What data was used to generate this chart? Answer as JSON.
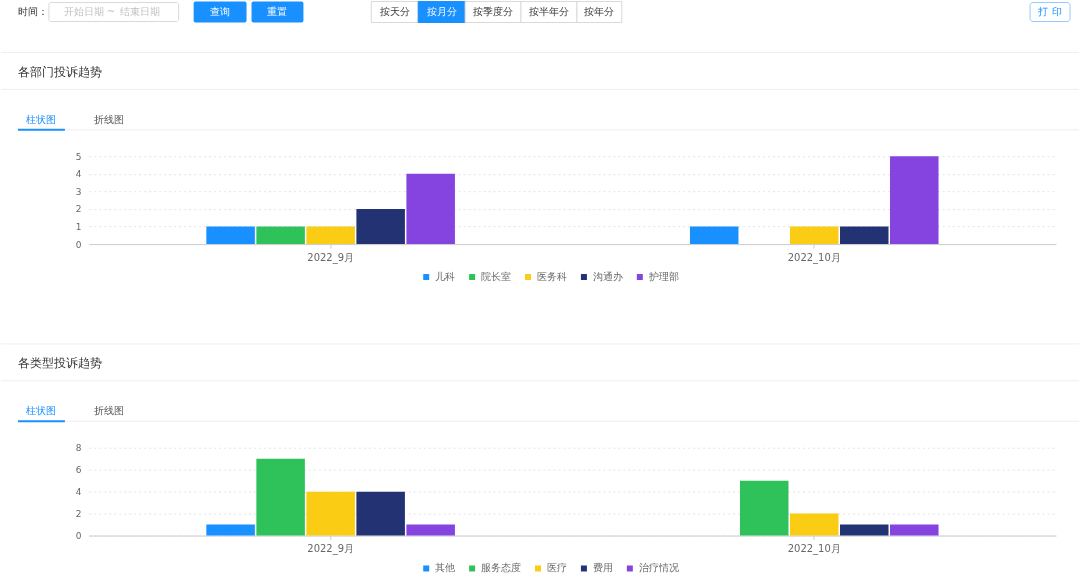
{
  "chart_data": [
    {
      "type": "other",
      "annotations": [
        "时间：",
        "开始日期",
        "~",
        "结束日期",
        "查询",
        "重置",
        "按天分",
        "按月分",
        "按季度分",
        "按半年分",
        "按年分",
        "打 印"
      ]
    },
    {
      "type": "bar",
      "title": "各部门投诉趋势",
      "annotations": [
        "柱状图",
        "折线图"
      ],
      "categories": [
        "2022_9月",
        "2022_10月"
      ],
      "series": [
        {
          "name": "儿科",
          "color": "#1890ff",
          "values": [
            1,
            1
          ]
        },
        {
          "name": "院长室",
          "color": "#2fc25b",
          "values": [
            1,
            null
          ]
        },
        {
          "name": "医务科",
          "color": "#facc14",
          "values": [
            1,
            1
          ]
        },
        {
          "name": "沟通办",
          "color": "#223273",
          "values": [
            2,
            1
          ]
        },
        {
          "name": "护理部",
          "color": "#8543e0",
          "values": [
            4,
            5
          ]
        }
      ],
      "ylim": [
        0,
        5
      ],
      "yticks": [
        0,
        1,
        2,
        3,
        4,
        5
      ],
      "grid": "y",
      "legend": "bottom"
    },
    {
      "type": "bar",
      "title": "各类型投诉趋势",
      "annotations": [
        "柱状图",
        "折线图"
      ],
      "categories": [
        "2022_9月",
        "2022_10月"
      ],
      "series": [
        {
          "name": "其他",
          "color": "#1890ff",
          "values": [
            1,
            null
          ]
        },
        {
          "name": "服务态度",
          "color": "#2fc25b",
          "values": [
            7,
            5
          ]
        },
        {
          "name": "医疗",
          "color": "#facc14",
          "values": [
            4,
            2
          ]
        },
        {
          "name": "费用",
          "color": "#223273",
          "values": [
            4,
            1
          ]
        },
        {
          "name": "治疗情况",
          "color": "#8543e0",
          "values": [
            1,
            1
          ]
        }
      ],
      "ylim": [
        0,
        8
      ],
      "yticks": [
        0,
        2,
        4,
        6,
        8
      ],
      "grid": "y",
      "legend": "bottom"
    }
  ]
}
